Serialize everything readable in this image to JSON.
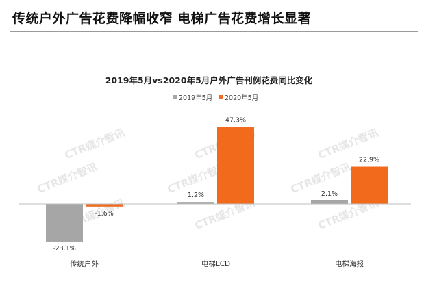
{
  "page_title": "传统户外广告花费降幅收窄 电梯广告花费增长显著",
  "watermark": "CTR媒介智讯",
  "colors": {
    "series_2019": "#A6A6A6",
    "series_2020": "#F26B1D",
    "axis": "#BFBFBF"
  },
  "chart_data": {
    "type": "bar",
    "title": "2019年5月vs2020年5月户外广告刊例花费同比变化",
    "categories": [
      "传统户外",
      "电梯LCD",
      "电梯海报"
    ],
    "series": [
      {
        "name": "2019年5月",
        "values": [
          -23.1,
          1.2,
          2.1
        ],
        "labels": [
          "-23.1%",
          "1.2%",
          "2.1%"
        ]
      },
      {
        "name": "2020年5月",
        "values": [
          -1.6,
          47.3,
          22.9
        ],
        "labels": [
          "-1.6%",
          "47.3%",
          "22.9%"
        ]
      }
    ],
    "ylim": [
      -25,
      50
    ],
    "grid": false,
    "legend": "top-center"
  }
}
